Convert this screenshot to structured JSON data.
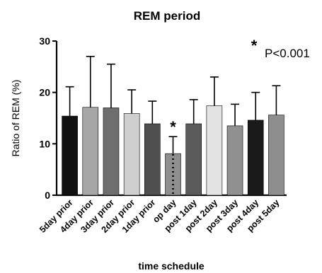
{
  "chart_data": {
    "type": "bar",
    "title": "REM period",
    "xlabel": "time schedule",
    "ylabel": "Ratio of REM (%)",
    "ylim": [
      0,
      30
    ],
    "yticks": [
      "0",
      "10",
      "20",
      "30"
    ],
    "categories": [
      "5day prior",
      "4day prior",
      "3day prior",
      "2day prior",
      "1day prior",
      "op day",
      "post 1day",
      "post 2day",
      "post 3day",
      "post 4day",
      "post 5day"
    ],
    "values": [
      15.4,
      17.1,
      17.0,
      15.9,
      13.9,
      8.1,
      13.9,
      17.4,
      13.5,
      14.6,
      15.6
    ],
    "error_upper": [
      21.1,
      27.0,
      25.5,
      20.5,
      18.3,
      11.4,
      18.6,
      23.0,
      17.7,
      20.0,
      21.3
    ],
    "colors": [
      "#111111",
      "#a6a6a6",
      "#6e6e6e",
      "#cfcfcf",
      "#4f4f4f",
      "#8f8f8f",
      "#5a5a5a",
      "#e3e3e3",
      "#909090",
      "#1a1a1a",
      "#8e8e8e"
    ],
    "significant_marker": "*",
    "significant_index": 5,
    "legend": {
      "marker": "*",
      "text": "P<0.001",
      "placement": "top-right"
    },
    "grid": false
  }
}
